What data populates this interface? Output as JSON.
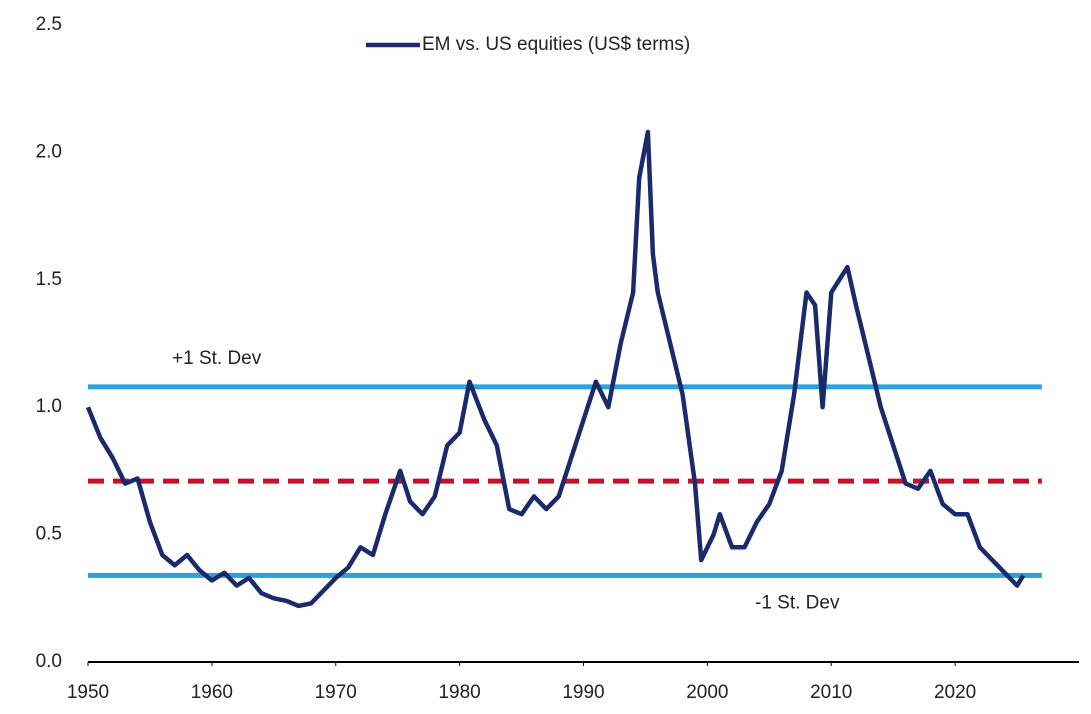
{
  "chart_data": {
    "type": "line",
    "legend": "top",
    "series": [
      {
        "name": "EM vs. US equities (US$ terms)",
        "color": "#1b2a6b",
        "x": [
          1950,
          1951,
          1952,
          1953,
          1954,
          1955,
          1956,
          1957,
          1958,
          1959,
          1960,
          1961,
          1962,
          1963,
          1964,
          1965,
          1966,
          1967,
          1968,
          1969,
          1970,
          1971,
          1972,
          1973,
          1974,
          1975.2,
          1976,
          1977,
          1978,
          1979,
          1980,
          1980.8,
          1982,
          1983,
          1984,
          1985,
          1986,
          1987,
          1988,
          1989,
          1990,
          1991,
          1992,
          1993,
          1994,
          1994.5,
          1995.2,
          1995.6,
          1996,
          1997,
          1998,
          1999,
          1999.5,
          2000.5,
          2001,
          2002,
          2003,
          2004,
          2005,
          2006,
          2007,
          2008,
          2008.7,
          2009.3,
          2010,
          2011.3,
          2012,
          2013,
          2014,
          2015,
          2016,
          2017,
          2018,
          2019,
          2020,
          2021,
          2022,
          2023,
          2024,
          2025,
          2025.5
        ],
        "values": [
          1.0,
          0.88,
          0.8,
          0.7,
          0.72,
          0.55,
          0.42,
          0.38,
          0.42,
          0.36,
          0.32,
          0.35,
          0.3,
          0.33,
          0.27,
          0.25,
          0.24,
          0.22,
          0.23,
          0.28,
          0.33,
          0.37,
          0.45,
          0.42,
          0.58,
          0.75,
          0.63,
          0.58,
          0.65,
          0.85,
          0.9,
          1.1,
          0.95,
          0.85,
          0.6,
          0.58,
          0.65,
          0.6,
          0.65,
          0.8,
          0.95,
          1.1,
          1.0,
          1.25,
          1.45,
          1.9,
          2.08,
          1.6,
          1.45,
          1.25,
          1.05,
          0.7,
          0.4,
          0.5,
          0.58,
          0.45,
          0.45,
          0.55,
          0.62,
          0.75,
          1.05,
          1.45,
          1.4,
          1.0,
          1.45,
          1.55,
          1.4,
          1.2,
          1.0,
          0.85,
          0.7,
          0.68,
          0.75,
          0.62,
          0.58,
          0.58,
          0.45,
          0.4,
          0.35,
          0.3,
          0.34
        ]
      }
    ],
    "reference_lines": [
      {
        "label": "+1 St. Dev",
        "value": 1.08,
        "color": "#2aa0dc",
        "dashed": false
      },
      {
        "value": 0.71,
        "color": "#c8102e",
        "dashed": true
      },
      {
        "label": "-1 St. Dev",
        "value": 0.34,
        "color": "#2aa0dc",
        "dashed": false
      }
    ],
    "xlim": [
      1950,
      2030
    ],
    "xticks": [
      1950,
      1960,
      1970,
      1980,
      1990,
      2000,
      2010,
      2020
    ],
    "ylim": [
      0,
      2.5
    ],
    "yticks": [
      {
        "value": 0,
        "label": "0.0"
      },
      0.5,
      {
        "value": 1,
        "label": "1.0"
      },
      1.5,
      {
        "value": 2,
        "label": "2.0"
      },
      2.5
    ],
    "grid": false
  }
}
